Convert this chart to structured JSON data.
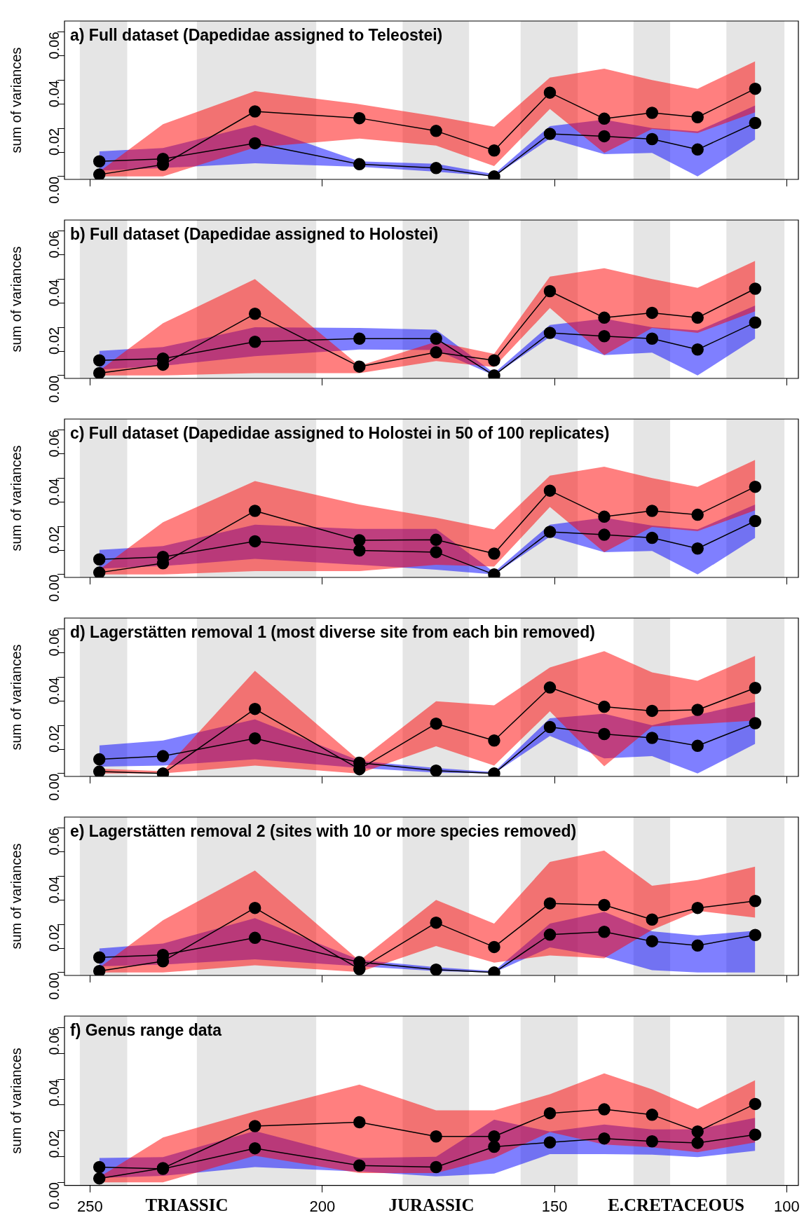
{
  "chart_data": [
    {
      "type": "line",
      "title": "a) Full dataset (Dapedidae assigned to Teleostei)",
      "ylabel": "sum of variances",
      "marker": "circle",
      "tick_labels": "y",
      "x": [
        248,
        234.3,
        214.5,
        192,
        175.5,
        163,
        151,
        139.3,
        129,
        119.2,
        106.8
      ],
      "xlim": [
        255.5,
        97.5
      ],
      "xticks": [
        250,
        200,
        150,
        100
      ],
      "ylim": [
        -0.0012,
        0.0645
      ],
      "yticks": [
        {
          "value": 0,
          "label": "0.00"
        },
        {
          "value": 0.01,
          "label": null
        },
        {
          "value": 0.02,
          "label": "0.02"
        },
        {
          "value": 0.03,
          "label": null
        },
        {
          "value": 0.04,
          "label": "0.04"
        },
        {
          "value": 0.05,
          "label": null
        },
        {
          "value": 0.06,
          "label": "0.06"
        }
      ],
      "bands": [
        {
          "axis": "x",
          "from": 252.2,
          "to": 242,
          "color": "#e5e5e5"
        },
        {
          "axis": "x",
          "from": 227,
          "to": 201.3,
          "color": "#e5e5e5"
        },
        {
          "axis": "x",
          "from": 182.7,
          "to": 168.4,
          "color": "#e5e5e5"
        },
        {
          "axis": "x",
          "from": 157.3,
          "to": 145,
          "color": "#e5e5e5"
        },
        {
          "axis": "x",
          "from": 133,
          "to": 125.1,
          "color": "#e5e5e5"
        },
        {
          "axis": "x",
          "from": 113,
          "to": 100.5,
          "color": "#e5e5e5"
        }
      ],
      "series": [
        {
          "color": "#000000",
          "values": [
            0.0063,
            0.0073,
            0.0138,
            0.0051,
            0.0035,
            0,
            0.0177,
            0.0167,
            0.0155,
            0.0112,
            0.0222
          ],
          "lower": [
            0.0024,
            0.0035,
            0.0055,
            0.004,
            0.002,
            0,
            0.0157,
            0.0093,
            0.0098,
            0,
            0.0154
          ],
          "upper": [
            0.0104,
            0.0118,
            0.0213,
            0.0063,
            0.0053,
            0.001,
            0.0209,
            0.0236,
            0.0201,
            0.0187,
            0.0295
          ]
        },
        {
          "color": "#000000",
          "values": [
            0.0008,
            0.0049,
            0.027,
            0.0242,
            0.0189,
            0.0108,
            0.0348,
            0.024,
            0.0264,
            0.0246,
            0.0364
          ],
          "lower": [
            0,
            0,
            0.012,
            0.0157,
            0.0128,
            0.0043,
            0.028,
            0.0098,
            0.0197,
            0.018,
            0.0266
          ],
          "upper": [
            0.002,
            0.0217,
            0.0354,
            0.03,
            0.025,
            0.0207,
            0.041,
            0.0447,
            0.04,
            0.0364,
            0.0478
          ]
        }
      ]
    },
    {
      "type": "line",
      "title": "b) Full dataset (Dapedidae assigned to Holostei)",
      "ylabel": "sum of variances",
      "marker": "circle",
      "tick_labels": "y",
      "x": [
        248,
        234.3,
        214.5,
        192,
        175.5,
        163,
        151,
        139.3,
        129,
        119.2,
        106.8
      ],
      "xlim": [
        255.5,
        97.5
      ],
      "xticks": [
        250,
        200,
        150,
        100
      ],
      "ylim": [
        -0.0012,
        0.0645
      ],
      "yticks": [
        {
          "value": 0,
          "label": "0.00"
        },
        {
          "value": 0.01,
          "label": null
        },
        {
          "value": 0.02,
          "label": "0.02"
        },
        {
          "value": 0.03,
          "label": null
        },
        {
          "value": 0.04,
          "label": "0.04"
        },
        {
          "value": 0.05,
          "label": null
        },
        {
          "value": 0.06,
          "label": "0.06"
        }
      ],
      "bands": [
        {
          "axis": "x",
          "from": 252.2,
          "to": 242,
          "color": "#e5e5e5"
        },
        {
          "axis": "x",
          "from": 227,
          "to": 201.3,
          "color": "#e5e5e5"
        },
        {
          "axis": "x",
          "from": 182.7,
          "to": 168.4,
          "color": "#e5e5e5"
        },
        {
          "axis": "x",
          "from": 157.3,
          "to": 145,
          "color": "#e5e5e5"
        },
        {
          "axis": "x",
          "from": 133,
          "to": 125.1,
          "color": "#e5e5e5"
        },
        {
          "axis": "x",
          "from": 113,
          "to": 100.5,
          "color": "#e5e5e5"
        }
      ],
      "series": [
        {
          "color": "#000000",
          "values": [
            0.0063,
            0.007,
            0.014,
            0.0153,
            0.0153,
            0,
            0.0177,
            0.0163,
            0.0153,
            0.0108,
            0.022
          ],
          "lower": [
            0.0024,
            0.004,
            0.008,
            0.0108,
            0.0106,
            0,
            0.016,
            0.0085,
            0.0095,
            0,
            0.0154
          ],
          "upper": [
            0.0102,
            0.0118,
            0.02,
            0.0197,
            0.019,
            0.001,
            0.021,
            0.0236,
            0.02,
            0.0187,
            0.029
          ]
        },
        {
          "color": "#000000",
          "values": [
            0.001,
            0.0045,
            0.0256,
            0.0037,
            0.0096,
            0.0063,
            0.035,
            0.024,
            0.026,
            0.024,
            0.036
          ],
          "lower": [
            0,
            0,
            0.001,
            0.001,
            0.006,
            0.0035,
            0.028,
            0.0085,
            0.0197,
            0.0177,
            0.0266
          ],
          "upper": [
            0.002,
            0.0217,
            0.04,
            0.004,
            0.014,
            0.009,
            0.041,
            0.0445,
            0.04,
            0.0364,
            0.0476
          ]
        }
      ]
    },
    {
      "type": "line",
      "title": "c) Full dataset (Dapedidae assigned to Holostei in 50 of 100 replicates)",
      "ylabel": "sum of variances",
      "marker": "circle",
      "tick_labels": "y",
      "x": [
        248,
        234.3,
        214.5,
        192,
        175.5,
        163,
        151,
        139.3,
        129,
        119.2,
        106.8
      ],
      "xlim": [
        255.5,
        97.5
      ],
      "xticks": [
        250,
        200,
        150,
        100
      ],
      "ylim": [
        -0.0012,
        0.0645
      ],
      "yticks": [
        {
          "value": 0,
          "label": "0.00"
        },
        {
          "value": 0.01,
          "label": null
        },
        {
          "value": 0.02,
          "label": "0.02"
        },
        {
          "value": 0.03,
          "label": null
        },
        {
          "value": 0.04,
          "label": "0.04"
        },
        {
          "value": 0.05,
          "label": null
        },
        {
          "value": 0.06,
          "label": "0.06"
        }
      ],
      "bands": [
        {
          "axis": "x",
          "from": 252.2,
          "to": 242,
          "color": "#e5e5e5"
        },
        {
          "axis": "x",
          "from": 227,
          "to": 201.3,
          "color": "#e5e5e5"
        },
        {
          "axis": "x",
          "from": 182.7,
          "to": 168.4,
          "color": "#e5e5e5"
        },
        {
          "axis": "x",
          "from": 157.3,
          "to": 145,
          "color": "#e5e5e5"
        },
        {
          "axis": "x",
          "from": 133,
          "to": 125.1,
          "color": "#e5e5e5"
        },
        {
          "axis": "x",
          "from": 113,
          "to": 100.5,
          "color": "#e5e5e5"
        }
      ],
      "series": [
        {
          "color": "#000000",
          "values": [
            0.0063,
            0.0073,
            0.0138,
            0.01,
            0.0093,
            0,
            0.0177,
            0.0165,
            0.0152,
            0.0108,
            0.0222
          ],
          "lower": [
            0.0024,
            0.0035,
            0.0065,
            0.004,
            0.002,
            0,
            0.0157,
            0.0093,
            0.0098,
            0,
            0.0152
          ],
          "upper": [
            0.0102,
            0.0118,
            0.0207,
            0.0189,
            0.0189,
            0.001,
            0.0207,
            0.0236,
            0.0203,
            0.0187,
            0.029
          ]
        },
        {
          "color": "#000000",
          "values": [
            0.0008,
            0.0047,
            0.0264,
            0.0142,
            0.0144,
            0.0087,
            0.0348,
            0.024,
            0.0264,
            0.0248,
            0.0364
          ],
          "lower": [
            0,
            0,
            0.0014,
            0.0014,
            0.004,
            0.0033,
            0.028,
            0.0093,
            0.0197,
            0.018,
            0.0266
          ],
          "upper": [
            0.002,
            0.0217,
            0.0388,
            0.029,
            0.0236,
            0.0187,
            0.041,
            0.0447,
            0.04,
            0.0364,
            0.0476
          ]
        }
      ]
    },
    {
      "type": "line",
      "title": "d) Lagerstätten removal 1 (most diverse site from each bin removed)",
      "ylabel": "sum of variances",
      "marker": "circle",
      "tick_labels": "y",
      "x": [
        248,
        234.3,
        214.5,
        192,
        175.5,
        163,
        151,
        139.3,
        129,
        119.2,
        106.8
      ],
      "xlim": [
        255.5,
        97.5
      ],
      "xticks": [
        250,
        200,
        150,
        100
      ],
      "ylim": [
        -0.0012,
        0.0645
      ],
      "yticks": [
        {
          "value": 0,
          "label": "0.00"
        },
        {
          "value": 0.01,
          "label": null
        },
        {
          "value": 0.02,
          "label": "0.02"
        },
        {
          "value": 0.03,
          "label": null
        },
        {
          "value": 0.04,
          "label": "0.04"
        },
        {
          "value": 0.05,
          "label": null
        },
        {
          "value": 0.06,
          "label": "0.06"
        }
      ],
      "bands": [
        {
          "axis": "x",
          "from": 252.2,
          "to": 242,
          "color": "#e5e5e5"
        },
        {
          "axis": "x",
          "from": 227,
          "to": 201.3,
          "color": "#e5e5e5"
        },
        {
          "axis": "x",
          "from": 182.7,
          "to": 168.4,
          "color": "#e5e5e5"
        },
        {
          "axis": "x",
          "from": 157.3,
          "to": 145,
          "color": "#e5e5e5"
        },
        {
          "axis": "x",
          "from": 133,
          "to": 125.1,
          "color": "#e5e5e5"
        },
        {
          "axis": "x",
          "from": 113,
          "to": 100.5,
          "color": "#e5e5e5"
        }
      ],
      "series": [
        {
          "color": "#000000",
          "values": [
            0.0059,
            0.0072,
            0.0146,
            0.0045,
            0.0012,
            0,
            0.0193,
            0.0164,
            0.0148,
            0.0115,
            0.0209
          ],
          "lower": [
            0.0029,
            0.0033,
            0.0059,
            0.0023,
            0.0004,
            0,
            0.0156,
            0.0063,
            0.0072,
            0,
            0.0123
          ],
          "upper": [
            0.0117,
            0.0137,
            0.0225,
            0.0053,
            0.0023,
            0.0006,
            0.0229,
            0.0248,
            0.02,
            0.0244,
            0.0297
          ]
        },
        {
          "color": "#000000",
          "values": [
            0.0008,
            0,
            0.0268,
            0.0018,
            0.0207,
            0.0137,
            0.0357,
            0.0277,
            0.026,
            0.0264,
            0.0355
          ],
          "lower": [
            0,
            0,
            0.0033,
            0,
            0.0113,
            0.0033,
            0.0258,
            0.003,
            0.0195,
            0.0205,
            0.022
          ],
          "upper": [
            0.002,
            0.001,
            0.0426,
            0.0053,
            0.03,
            0.0283,
            0.044,
            0.0508,
            0.042,
            0.0385,
            0.0488
          ]
        }
      ]
    },
    {
      "type": "line",
      "title": "e) Lagerstätten removal 2 (sites with 10 or more species removed)",
      "ylabel": "sum of variances",
      "marker": "circle",
      "tick_labels": "y",
      "x": [
        248,
        234.3,
        214.5,
        192,
        175.5,
        163,
        151,
        139.3,
        129,
        119.2,
        106.8
      ],
      "xlim": [
        255.5,
        97.5
      ],
      "xticks": [
        250,
        200,
        150,
        100
      ],
      "ylim": [
        -0.0012,
        0.0645
      ],
      "yticks": [
        {
          "value": 0,
          "label": "0.00"
        },
        {
          "value": 0.01,
          "label": null
        },
        {
          "value": 0.02,
          "label": "0.02"
        },
        {
          "value": 0.03,
          "label": null
        },
        {
          "value": 0.04,
          "label": "0.04"
        },
        {
          "value": 0.05,
          "label": null
        },
        {
          "value": 0.06,
          "label": "0.06"
        }
      ],
      "bands": [
        {
          "axis": "x",
          "from": 252.2,
          "to": 242,
          "color": "#e5e5e5"
        },
        {
          "axis": "x",
          "from": 227,
          "to": 201.3,
          "color": "#e5e5e5"
        },
        {
          "axis": "x",
          "from": 182.7,
          "to": 168.4,
          "color": "#e5e5e5"
        },
        {
          "axis": "x",
          "from": 157.3,
          "to": 145,
          "color": "#e5e5e5"
        },
        {
          "axis": "x",
          "from": 133,
          "to": 125.1,
          "color": "#e5e5e5"
        },
        {
          "axis": "x",
          "from": 113,
          "to": 100.5,
          "color": "#e5e5e5"
        }
      ],
      "series": [
        {
          "color": "#000000",
          "values": [
            0.0063,
            0.0073,
            0.0144,
            0.0043,
            0.0012,
            0,
            0.0157,
            0.0169,
            0.013,
            0.0112,
            0.0156
          ],
          "lower": [
            0.0026,
            0.0033,
            0.0055,
            0.0026,
            0.0006,
            0,
            0.0104,
            0.0065,
            0.001,
            0,
            0
          ],
          "upper": [
            0.01,
            0.012,
            0.0226,
            0.0053,
            0.0022,
            0.0006,
            0.0203,
            0.0252,
            0.0171,
            0.0154,
            0.0173
          ]
        },
        {
          "color": "#000000",
          "values": [
            0.0006,
            0.0047,
            0.0268,
            0.0014,
            0.0207,
            0.0106,
            0.0287,
            0.028,
            0.022,
            0.0268,
            0.0297
          ],
          "lower": [
            0,
            0,
            0.003,
            0.0002,
            0.011,
            0.0041,
            0.0071,
            0.0059,
            0.0177,
            0.0256,
            0.0228
          ],
          "upper": [
            0.002,
            0.0217,
            0.0423,
            0.0049,
            0.0301,
            0.0203,
            0.0459,
            0.0506,
            0.036,
            0.0384,
            0.0439
          ]
        }
      ]
    },
    {
      "type": "line",
      "title": "f) Genus range data",
      "ylabel": "sum of variances",
      "marker": "circle",
      "annotations": [
        "TRIASSIC",
        "JURASSIC",
        "E.CRETACEOUS"
      ],
      "x": [
        248,
        234.3,
        214.5,
        192,
        175.5,
        163,
        151,
        139.3,
        129,
        119.2,
        106.8
      ],
      "xlim": [
        255.5,
        97.5
      ],
      "xticks": [
        250,
        200,
        150,
        100
      ],
      "ylim": [
        -0.0012,
        0.0645
      ],
      "yticks": [
        {
          "value": 0,
          "label": "0.00"
        },
        {
          "value": 0.01,
          "label": null
        },
        {
          "value": 0.02,
          "label": "0.02"
        },
        {
          "value": 0.03,
          "label": null
        },
        {
          "value": 0.04,
          "label": "0.04"
        },
        {
          "value": 0.05,
          "label": null
        },
        {
          "value": 0.06,
          "label": "0.06"
        }
      ],
      "bands": [
        {
          "axis": "x",
          "from": 252.2,
          "to": 242,
          "color": "#e5e5e5"
        },
        {
          "axis": "x",
          "from": 227,
          "to": 201.3,
          "color": "#e5e5e5"
        },
        {
          "axis": "x",
          "from": 182.7,
          "to": 168.4,
          "color": "#e5e5e5"
        },
        {
          "axis": "x",
          "from": 157.3,
          "to": 145,
          "color": "#e5e5e5"
        },
        {
          "axis": "x",
          "from": 133,
          "to": 125.1,
          "color": "#e5e5e5"
        },
        {
          "axis": "x",
          "from": 113,
          "to": 100.5,
          "color": "#e5e5e5"
        }
      ],
      "series": [
        {
          "color": "#000000",
          "values": [
            0.0059,
            0.0052,
            0.0132,
            0.0065,
            0.0059,
            0.0138,
            0.0155,
            0.017,
            0.0159,
            0.0153,
            0.0185
          ],
          "lower": [
            0.0017,
            0.0025,
            0.0059,
            0.0042,
            0.0023,
            0.0034,
            0.0109,
            0.0109,
            0.0107,
            0.0098,
            0.0122
          ],
          "upper": [
            0.0094,
            0.0098,
            0.0199,
            0.0094,
            0.0099,
            0.0243,
            0.0197,
            0.0224,
            0.0205,
            0.0206,
            0.025
          ]
        },
        {
          "color": "#000000",
          "values": [
            0.0015,
            0.0055,
            0.0218,
            0.0233,
            0.0178,
            0.0178,
            0.0268,
            0.0283,
            0.0262,
            0.0197,
            0.0304
          ],
          "lower": [
            0,
            0,
            0.0103,
            0.0036,
            0.0036,
            0.0094,
            0.0195,
            0.0147,
            0.0136,
            0.0117,
            0.0155
          ],
          "upper": [
            0.002,
            0.0174,
            0.0275,
            0.0379,
            0.0279,
            0.0279,
            0.0342,
            0.0423,
            0.0361,
            0.0285,
            0.0396
          ]
        }
      ]
    }
  ]
}
